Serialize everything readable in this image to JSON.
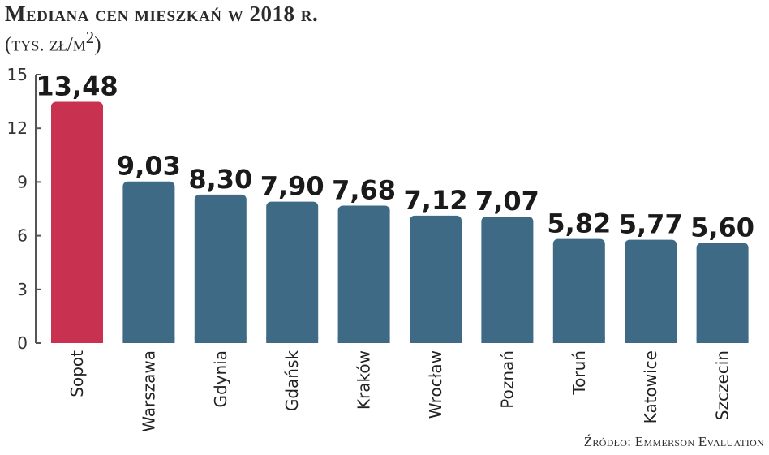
{
  "title": "Mediana cen mieszkań w 2018 r.",
  "subtitle_prefix": "(tys. zł/m",
  "subtitle_sup": "2",
  "subtitle_suffix": ")",
  "source": "Źródło: Emmerson Evaluation",
  "colors": {
    "highlight": "#c8314f",
    "bar": "#3e6a85",
    "axis": "#555555"
  },
  "chart_data": {
    "type": "bar",
    "categories": [
      "Sopot",
      "Warszawa",
      "Gdynia",
      "Gdańsk",
      "Kraków",
      "Wrocław",
      "Poznań",
      "Toruń",
      "Katowice",
      "Szczecin"
    ],
    "values": [
      13.48,
      9.03,
      8.3,
      7.9,
      7.68,
      7.12,
      7.07,
      5.82,
      5.77,
      5.6
    ],
    "value_labels": [
      "13,48",
      "9,03",
      "8,30",
      "7,90",
      "7,68",
      "7,12",
      "7,07",
      "5,82",
      "5,77",
      "5,60"
    ],
    "highlight_index": 0,
    "yticks": [
      0,
      3,
      6,
      9,
      12,
      15
    ],
    "ylim": [
      0,
      15
    ],
    "grid": false,
    "legend": "none"
  }
}
